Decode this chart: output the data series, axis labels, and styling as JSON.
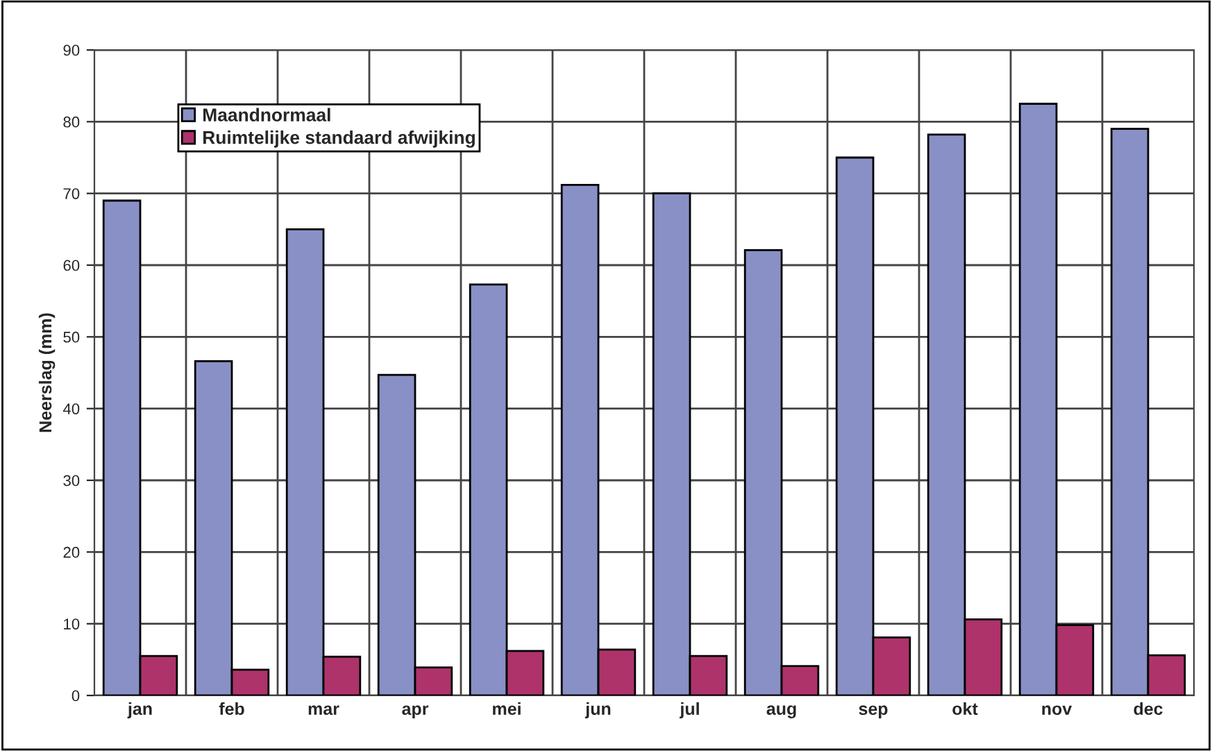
{
  "chart_data": {
    "type": "bar",
    "ylabel": "Neerslag (mm)",
    "categories": [
      "jan",
      "feb",
      "mar",
      "apr",
      "mei",
      "jun",
      "jul",
      "aug",
      "sep",
      "okt",
      "nov",
      "dec"
    ],
    "series": [
      {
        "name": "Maandnormaal",
        "color": "#8890c6",
        "values": [
          69,
          46.6,
          65,
          44.7,
          57.3,
          71.2,
          70,
          62.1,
          75,
          78.2,
          82.5,
          79
        ]
      },
      {
        "name": "Ruimtelijke standaard afwijking",
        "color": "#ae336b",
        "values": [
          5.5,
          3.6,
          5.4,
          3.9,
          6.2,
          6.4,
          5.5,
          4.1,
          8.1,
          10.6,
          9.8,
          5.6
        ]
      }
    ],
    "ylim": [
      0,
      90
    ],
    "yticks": [
      0,
      10,
      20,
      30,
      40,
      50,
      60,
      70,
      80,
      90
    ],
    "grid": true,
    "legend": "top left"
  }
}
